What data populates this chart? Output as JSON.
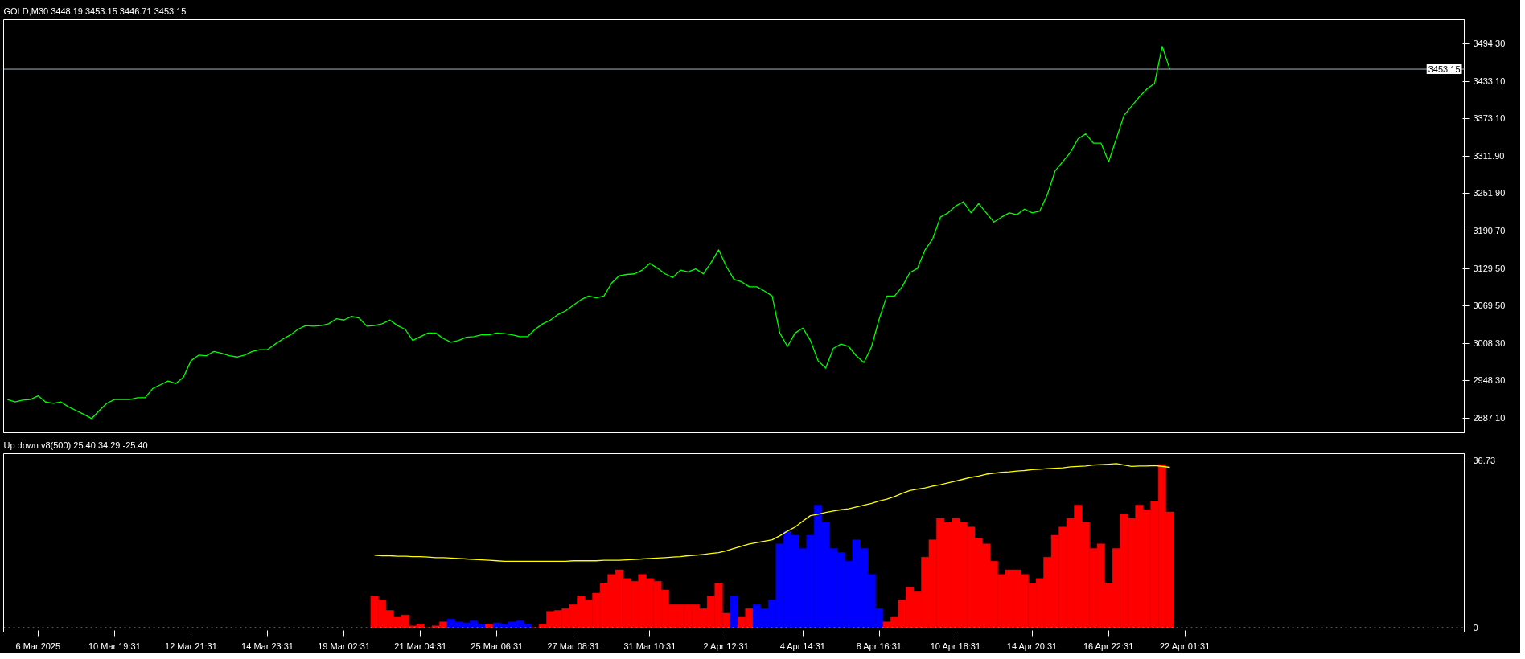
{
  "chart_data": [
    {
      "type": "line",
      "title": "GOLD,M30  3448.19 3453.15 3446.71 3453.15",
      "series": [
        {
          "color": "#00ff00",
          "values": [
            2917,
            2913,
            2916,
            2917,
            2923,
            2913,
            2911,
            2913,
            2905,
            2899,
            2893,
            2886,
            2899,
            2911,
            2917,
            2917,
            2917,
            2920,
            2920,
            2935,
            2941,
            2947,
            2943,
            2953,
            2980,
            2989,
            2988,
            2995,
            2992,
            2988,
            2986,
            2989,
            2995,
            2998,
            2998,
            3007,
            3015,
            3022,
            3031,
            3037,
            3036,
            3037,
            3040,
            3048,
            3046,
            3052,
            3049,
            3036,
            3037,
            3040,
            3046,
            3037,
            3031,
            3013,
            3019,
            3025,
            3025,
            3016,
            3010,
            3013,
            3018,
            3019,
            3022,
            3022,
            3025,
            3024,
            3022,
            3019,
            3019,
            3031,
            3040,
            3046,
            3055,
            3061,
            3070,
            3079,
            3085,
            3082,
            3085,
            3106,
            3118,
            3120,
            3121,
            3127,
            3138,
            3130,
            3121,
            3115,
            3127,
            3124,
            3129,
            3121,
            3139,
            3160,
            3133,
            3112,
            3108,
            3100,
            3100,
            3093,
            3085,
            3025,
            3003,
            3025,
            3033,
            3013,
            2980,
            2968,
            3000,
            3007,
            3003,
            2988,
            2977,
            3003,
            3048,
            3085,
            3085,
            3100,
            3123,
            3130,
            3160,
            3178,
            3213,
            3220,
            3231,
            3238,
            3220,
            3235,
            3220,
            3205,
            3213,
            3220,
            3217,
            3226,
            3220,
            3223,
            3250,
            3288,
            3303,
            3318,
            3340,
            3348,
            3333,
            3333,
            3303,
            3340,
            3378,
            3393,
            3408,
            3421,
            3430,
            3490,
            3453,
            null,
            null,
            null,
            null,
            null,
            null,
            null,
            null,
            null,
            null,
            null,
            null,
            null,
            null,
            null,
            null,
            null,
            null,
            null,
            null,
            null,
            null,
            null,
            null,
            null,
            null,
            null,
            null,
            null,
            null,
            null,
            null,
            null,
            null,
            null,
            null,
            null,
            null
          ]
        }
      ],
      "ylim": [
        2863.1,
        3533.4
      ],
      "yticks": [
        {
          "value": 2887.1,
          "label": "2887.10"
        },
        {
          "value": 2948.3,
          "label": "2948.30"
        },
        {
          "value": 3008.3,
          "label": "3008.30"
        },
        {
          "value": 3069.5,
          "label": "3069.50"
        },
        {
          "value": 3129.5,
          "label": "3129.50"
        },
        {
          "value": 3190.7,
          "label": "3190.70"
        },
        {
          "value": 3251.9,
          "label": "3251.90"
        },
        {
          "value": 3311.9,
          "label": "3311.90"
        },
        {
          "value": 3373.1,
          "label": "3373.10"
        },
        {
          "value": 3433.1,
          "label": "3433.10"
        },
        {
          "value": 3494.3,
          "label": "3494.30"
        }
      ],
      "ref_lines": [
        {
          "axis": "y",
          "value": 3453.15,
          "label": "3453.15",
          "color": "#a0b4c8",
          "line_style": "solid"
        }
      ],
      "tick_labels": "y"
    },
    {
      "type": "bar",
      "title": "Up down v8(500) 25.40 34.29 -25.40",
      "categories": [
        null,
        null,
        null,
        null,
        "6 Mar 2025",
        null,
        null,
        null,
        null,
        null,
        null,
        null,
        null,
        null,
        "10 Mar 19:31",
        null,
        null,
        null,
        null,
        null,
        null,
        null,
        null,
        null,
        "12 Mar 21:31",
        null,
        null,
        null,
        null,
        null,
        null,
        null,
        null,
        null,
        "14 Mar 23:31",
        null,
        null,
        null,
        null,
        null,
        null,
        null,
        null,
        null,
        "19 Mar 02:31",
        null,
        null,
        null,
        null,
        null,
        null,
        null,
        null,
        null,
        "21 Mar 04:31",
        null,
        null,
        null,
        null,
        null,
        null,
        null,
        null,
        null,
        "25 Mar 06:31",
        null,
        null,
        null,
        null,
        null,
        null,
        null,
        null,
        null,
        "27 Mar 08:31",
        null,
        null,
        null,
        null,
        null,
        null,
        null,
        null,
        null,
        "31 Mar 10:31",
        null,
        null,
        null,
        null,
        null,
        null,
        null,
        null,
        null,
        "2 Apr 12:31",
        null,
        null,
        null,
        null,
        null,
        null,
        null,
        null,
        null,
        "4 Apr 14:31",
        null,
        null,
        null,
        null,
        null,
        null,
        null,
        null,
        null,
        "8 Apr 16:31",
        null,
        null,
        null,
        null,
        null,
        null,
        null,
        null,
        null,
        "10 Apr 18:31",
        null,
        null,
        null,
        null,
        null,
        null,
        null,
        null,
        null,
        "14 Apr 20:31",
        null,
        null,
        null,
        null,
        null,
        null,
        null,
        null,
        null,
        "16 Apr 22:31",
        null,
        null,
        null,
        null,
        null,
        null,
        null,
        null,
        null,
        "22 Apr 01:31",
        null,
        null,
        null,
        null,
        null,
        null,
        null,
        null,
        null,
        null,
        null,
        null,
        null,
        null,
        null,
        null,
        null,
        null,
        null,
        null,
        null,
        null,
        null,
        null,
        null,
        null,
        null,
        null,
        null,
        null,
        null,
        null,
        null,
        null,
        null,
        null
      ],
      "series": [
        {
          "type": "bar",
          "colors": [
            "#ff0000",
            "#ff0000",
            "#ff0000",
            "#ff0000",
            "#ff0000",
            "#ff0000",
            "#ff0000",
            "#ff0000",
            "#ff0000",
            "#ff0000",
            "#ff0000",
            "#ff0000",
            "#ff0000",
            "#ff0000",
            "#ff0000",
            "#ff0000",
            "#ff0000",
            "#ff0000",
            "#ff0000",
            "#ff0000",
            "#ff0000",
            "#ff0000",
            "#ff0000",
            "#ff0000",
            "#ff0000",
            "#ff0000",
            "#ff0000",
            "#ff0000",
            "#ff0000",
            "#ff0000",
            "#ff0000",
            "#ff0000",
            "#ff0000",
            "#ff0000",
            "#ff0000",
            "#ff0000",
            "#ff0000",
            "#ff0000",
            "#ff0000",
            "#ff0000",
            "#ff0000",
            "#ff0000",
            "#ff0000",
            "#ff0000",
            "#ff0000",
            "#ff0000",
            "#ff0000",
            "#ff0000",
            "#ff0000",
            "#ff0000",
            "#ff0000",
            "#ff0000",
            "#ff0000",
            "#ff0000",
            "#ff0000",
            "#ff0000",
            "#ff0000",
            "#ff0000",
            "#0000ff",
            "#0000ff",
            "#0000ff",
            "#0000ff",
            "#0000ff",
            "#ff0000",
            "#0000ff",
            "#0000ff",
            "#0000ff",
            "#0000ff",
            "#0000ff",
            "#ff0000",
            "#ff0000",
            "#ff0000",
            "#ff0000",
            "#ff0000",
            "#ff0000",
            "#ff0000",
            "#ff0000",
            "#ff0000",
            "#ff0000",
            "#ff0000",
            "#ff0000",
            "#ff0000",
            "#ff0000",
            "#ff0000",
            "#ff0000",
            "#ff0000",
            "#ff0000",
            "#ff0000",
            "#ff0000",
            "#ff0000",
            "#ff0000",
            "#ff0000",
            "#ff0000",
            "#ff0000",
            "#ff0000",
            "#0000ff",
            "#ff0000",
            "#ff0000",
            "#0000ff",
            "#0000ff",
            "#0000ff",
            "#0000ff",
            "#0000ff",
            "#0000ff",
            "#0000ff",
            "#0000ff",
            "#0000ff",
            "#0000ff",
            "#0000ff",
            "#0000ff",
            "#0000ff",
            "#0000ff",
            "#0000ff",
            "#0000ff",
            "#0000ff",
            "#ff0000",
            "#ff0000",
            "#ff0000",
            "#ff0000",
            "#ff0000",
            "#ff0000",
            "#ff0000",
            "#ff0000",
            "#ff0000",
            "#ff0000",
            "#ff0000",
            "#ff0000",
            "#ff0000",
            "#ff0000",
            "#ff0000",
            "#ff0000",
            "#ff0000",
            "#ff0000",
            "#ff0000",
            "#ff0000",
            "#ff0000",
            "#ff0000",
            "#ff0000",
            "#ff0000",
            "#ff0000",
            "#ff0000",
            "#ff0000",
            "#ff0000",
            "#ff0000",
            "#ff0000",
            "#ff0000",
            "#ff0000",
            "#ff0000",
            "#ff0000",
            "#ff0000",
            "#ff0000",
            "#ff0000",
            "#ff0000",
            "#ff0000",
            "#ff0000",
            "#ff0000",
            "#ff0000",
            "#ff0000",
            "#ff0000",
            "#ff0000",
            "#ff0000",
            "#ff0000",
            "#ff0000",
            "#ff0000",
            "#ff0000",
            "#ff0000",
            "#ff0000",
            "#ff0000",
            "#ff0000",
            "#ff0000",
            "#ff0000",
            "#ff0000",
            "#ff0000",
            "#ff0000",
            "#ff0000",
            "#ff0000",
            "#ff0000",
            "#ff0000",
            "#ff0000",
            "#ff0000",
            "#ff0000",
            "#ff0000",
            "#ff0000",
            "#ff0000",
            "#ff0000",
            "#ff0000",
            "#ff0000",
            "#ff0000",
            "#ff0000",
            "#ff0000",
            "#ff0000"
          ],
          "values": [
            null,
            null,
            null,
            null,
            null,
            null,
            null,
            null,
            null,
            null,
            null,
            null,
            null,
            null,
            null,
            null,
            null,
            null,
            null,
            null,
            null,
            null,
            null,
            null,
            null,
            null,
            null,
            null,
            null,
            null,
            null,
            null,
            null,
            null,
            null,
            null,
            null,
            null,
            null,
            null,
            null,
            null,
            null,
            null,
            null,
            null,
            null,
            null,
            7.0,
            6.1,
            3.8,
            2.3,
            2.8,
            0.4,
            0.8,
            0,
            0.4,
            1.3,
            1.9,
            1.3,
            1.1,
            1.5,
            0.8,
            0.8,
            1.1,
            0.8,
            1.3,
            1.5,
            0.8,
            0,
            0.8,
            3.6,
            3.8,
            4.2,
            5.1,
            7.0,
            6.1,
            7.6,
            9.8,
            11.7,
            12.7,
            10.8,
            10.2,
            11.7,
            10.8,
            10.2,
            8.3,
            5.1,
            5.1,
            5.1,
            5.1,
            4.2,
            7.0,
            9.8,
            3.2,
            7.0,
            2.3,
            4.2,
            5.1,
            4.2,
            6.1,
            18.4,
            21.2,
            20.3,
            17.4,
            20.3,
            26.9,
            23.1,
            17.4,
            16.5,
            14.6,
            19.3,
            17.4,
            11.7,
            4.2,
            1.3,
            2.3,
            6.1,
            8.9,
            7.9,
            15.5,
            19.3,
            24.0,
            23.1,
            24.0,
            23.1,
            22.1,
            19.7,
            18.4,
            14.6,
            11.7,
            12.7,
            12.7,
            11.7,
            9.8,
            10.8,
            15.5,
            20.3,
            22.1,
            24.0,
            26.9,
            23.1,
            17.4,
            18.4,
            9.8,
            17.4,
            25.0,
            24.0,
            26.9,
            25.9,
            27.8,
            35.8,
            25.4,
            null,
            null,
            null,
            null,
            null,
            null,
            null,
            null,
            null,
            null,
            null,
            null,
            null,
            null,
            null,
            null,
            null,
            null,
            null,
            null,
            null,
            null,
            null,
            null,
            null,
            null,
            null,
            null,
            null,
            null,
            null,
            null,
            null,
            null,
            null,
            null,
            null,
            null
          ]
        },
        {
          "type": "line",
          "color": "#ffff00",
          "values": [
            null,
            null,
            null,
            null,
            null,
            null,
            null,
            null,
            null,
            null,
            null,
            null,
            null,
            null,
            null,
            null,
            null,
            null,
            null,
            null,
            null,
            null,
            null,
            null,
            null,
            null,
            null,
            null,
            null,
            null,
            null,
            null,
            null,
            null,
            null,
            null,
            null,
            null,
            null,
            null,
            null,
            null,
            null,
            null,
            null,
            null,
            null,
            null,
            15.9,
            15.8,
            15.8,
            15.7,
            15.7,
            15.6,
            15.6,
            15.5,
            15.4,
            15.4,
            15.3,
            15.2,
            15.1,
            15.0,
            14.9,
            14.8,
            14.7,
            14.6,
            14.6,
            14.6,
            14.6,
            14.6,
            14.6,
            14.6,
            14.6,
            14.6,
            14.7,
            14.7,
            14.7,
            14.7,
            14.8,
            14.8,
            14.8,
            14.9,
            15.0,
            15.1,
            15.2,
            15.3,
            15.4,
            15.5,
            15.6,
            15.8,
            15.9,
            16.1,
            16.3,
            16.5,
            16.9,
            17.4,
            17.9,
            18.4,
            18.7,
            19.0,
            19.3,
            20.2,
            21.2,
            22.1,
            23.4,
            24.6,
            24.9,
            25.3,
            25.6,
            25.9,
            26.1,
            26.5,
            26.9,
            27.3,
            27.8,
            28.2,
            28.8,
            29.5,
            30.1,
            30.4,
            30.7,
            31.1,
            31.4,
            31.8,
            32.2,
            32.6,
            33.0,
            33.3,
            33.7,
            33.9,
            34.1,
            34.2,
            34.4,
            34.5,
            34.7,
            34.8,
            34.9,
            35.0,
            35.1,
            35.3,
            35.4,
            35.5,
            35.7,
            35.8,
            35.9,
            36.0,
            35.7,
            35.4,
            35.5,
            35.5,
            35.6,
            35.4,
            35.2,
            null,
            null,
            null,
            null,
            null,
            null,
            null,
            null,
            null,
            null,
            null,
            null,
            null,
            null,
            null,
            null,
            null,
            null,
            null,
            null,
            null,
            null,
            null,
            null,
            null,
            null,
            null,
            null,
            null,
            null,
            null,
            null,
            null,
            null,
            null,
            null,
            null,
            null
          ]
        }
      ],
      "ylim": [
        -0.95,
        38.2
      ],
      "yticks": [
        0,
        36.73
      ],
      "ref_lines": [
        {
          "axis": "y",
          "value": 0,
          "color": "#c0c0c0",
          "line_style": "dotted"
        }
      ]
    }
  ]
}
